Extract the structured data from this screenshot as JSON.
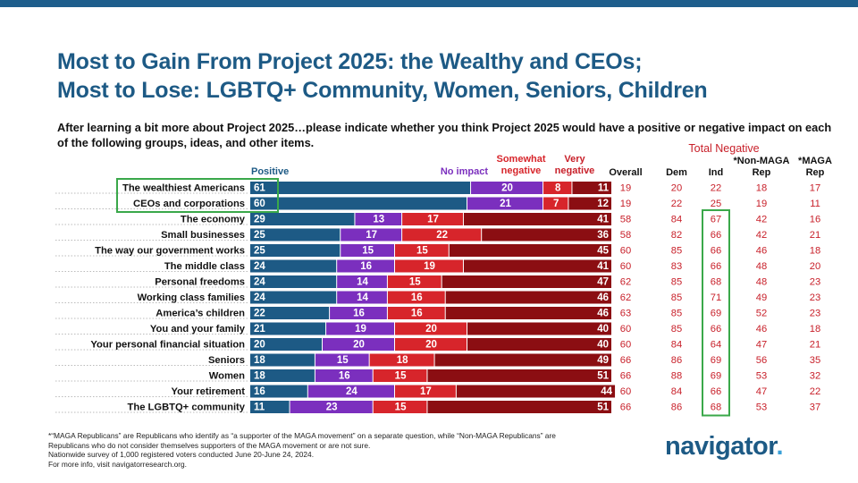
{
  "title": {
    "line1": "Most to Gain From Project 2025: the Wealthy and CEOs;",
    "line2": "Most to Lose: LGBTQ+ Community, Women, Seniors, Children"
  },
  "question": "After learning a bit more about Project 2025…please indicate whether you think Project 2025 would have a positive or negative impact on each of the following groups, ideas, and other items.",
  "chart_data": {
    "type": "bar",
    "stacked": true,
    "orientation": "horizontal",
    "categories": [
      "The wealthiest Americans",
      "CEOs and corporations",
      "The economy",
      "Small businesses",
      "The way our government works",
      "The middle class",
      "Personal freedoms",
      "Working class families",
      "America’s children",
      "You and your family",
      "Your personal financial situation",
      "Seniors",
      "Women",
      "Your retirement",
      "The LGBTQ+ community"
    ],
    "series": [
      {
        "name": "Positive",
        "color": "#1d5a85",
        "values": [
          61,
          60,
          29,
          25,
          25,
          24,
          24,
          24,
          22,
          21,
          20,
          18,
          18,
          16,
          11
        ]
      },
      {
        "name": "No impact",
        "color": "#7b2fbe",
        "values": [
          20,
          21,
          13,
          17,
          15,
          16,
          14,
          14,
          16,
          19,
          20,
          15,
          16,
          24,
          23
        ]
      },
      {
        "name": "Somewhat negative",
        "color": "#d7252b",
        "values": [
          8,
          7,
          17,
          22,
          15,
          19,
          15,
          16,
          16,
          20,
          20,
          18,
          15,
          17,
          15
        ]
      },
      {
        "name": "Very negative",
        "color": "#8b0e12",
        "values": [
          11,
          12,
          41,
          36,
          45,
          41,
          47,
          46,
          46,
          40,
          40,
          49,
          51,
          44,
          51
        ]
      }
    ],
    "highlighted_categories": [
      "The wealthiest Americans",
      "CEOs and corporations"
    ],
    "table": {
      "heading": "Total Negative",
      "columns": [
        "Overall",
        "Dem",
        "Ind",
        "*Non-MAGA Rep",
        "*MAGA Rep"
      ],
      "highlighted_column": "Ind",
      "rows": [
        [
          19,
          20,
          22,
          18,
          17
        ],
        [
          19,
          22,
          25,
          19,
          11
        ],
        [
          58,
          84,
          67,
          42,
          16
        ],
        [
          58,
          82,
          66,
          42,
          21
        ],
        [
          60,
          85,
          66,
          46,
          18
        ],
        [
          60,
          83,
          66,
          48,
          20
        ],
        [
          62,
          85,
          68,
          48,
          23
        ],
        [
          62,
          85,
          71,
          49,
          23
        ],
        [
          63,
          85,
          69,
          52,
          23
        ],
        [
          60,
          85,
          66,
          46,
          18
        ],
        [
          60,
          84,
          64,
          47,
          21
        ],
        [
          66,
          86,
          69,
          56,
          35
        ],
        [
          66,
          88,
          69,
          53,
          32
        ],
        [
          60,
          84,
          66,
          47,
          22
        ],
        [
          66,
          86,
          68,
          53,
          37
        ]
      ]
    }
  },
  "footnote": {
    "line1": "*“MAGA Republicans” are Republicans who identify as “a supporter of the MAGA movement” on a separate question, while “Non-MAGA Republicans” are",
    "line2": "Republicans who do not consider themselves supporters of the MAGA movement or are not sure.",
    "line3": "Nationwide survey of 1,000 registered voters conducted June 20-June 24, 2024.",
    "line4": "For more info, visit navigatorresearch.org."
  },
  "logo": {
    "text": "navigator",
    "dot": "."
  },
  "colors": {
    "brand": "#1d5a85",
    "table_text": "#c8202a",
    "highlight_box": "#3aa84a",
    "logo_dot": "#3aa0d8"
  }
}
